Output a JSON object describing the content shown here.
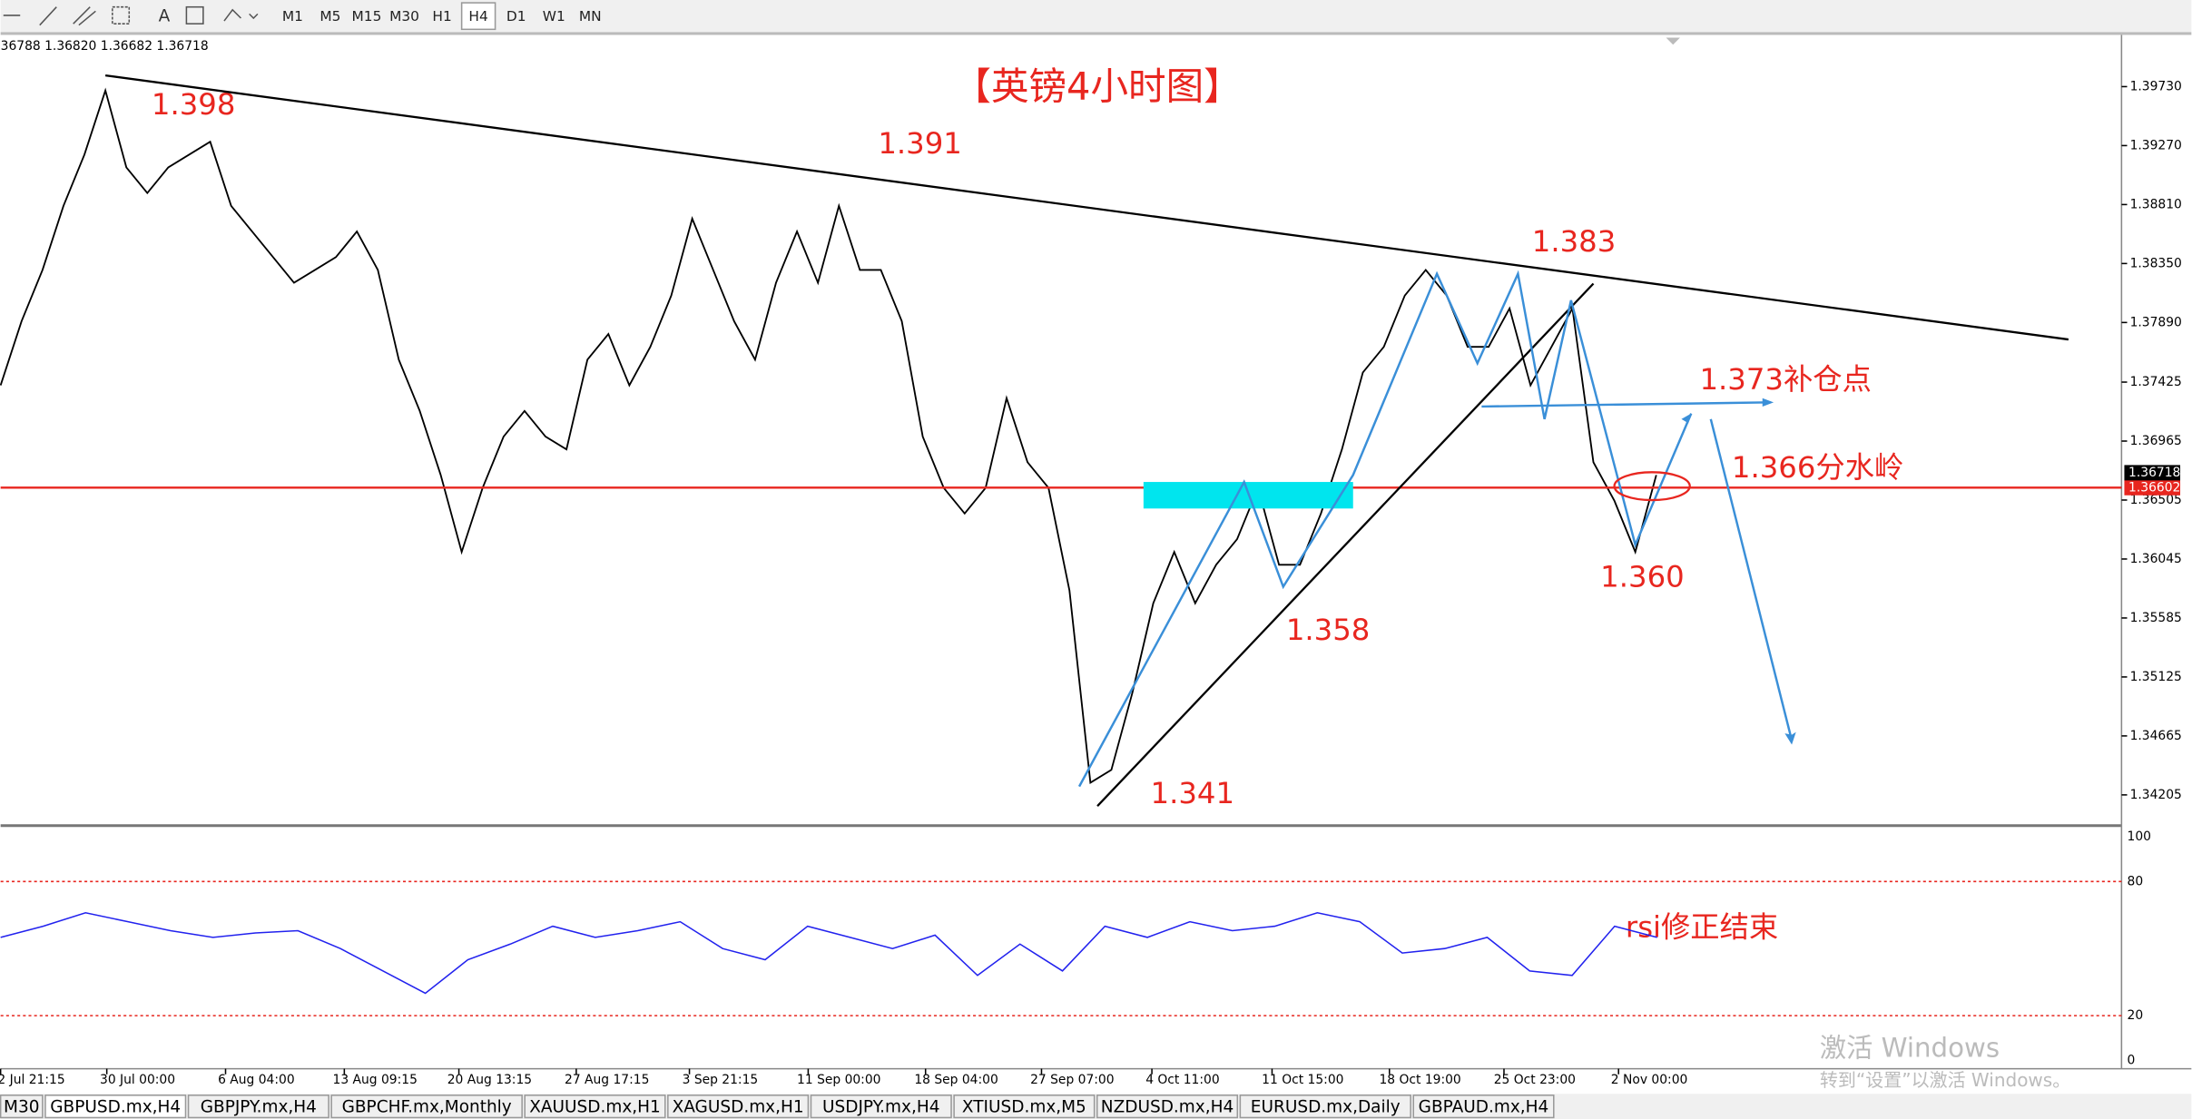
{
  "toolbar": {
    "timeframes": [
      "M1",
      "M5",
      "M15",
      "M30",
      "H1",
      "H4",
      "D1",
      "W1",
      "MN"
    ]
  },
  "chart": {
    "info": "36788 1.36820 1.36682 1.36718",
    "title": "【英镑4小时图】",
    "annotations": [
      "1.398",
      "1.391",
      "1.383",
      "1.373补仓点",
      "1.366分水岭",
      "1.360",
      "1.358",
      "1.341",
      "rsi修正结束"
    ],
    "price_ticks": [
      {
        "value": 1.3973,
        "label": "1.39730"
      },
      {
        "value": 1.3927,
        "label": "1.39270"
      },
      {
        "value": 1.3881,
        "label": "1.38810"
      },
      {
        "value": 1.3835,
        "label": "1.38350"
      },
      {
        "value": 1.3789,
        "label": "1.37890"
      },
      {
        "value": 1.37425,
        "label": "1.37425"
      },
      {
        "value": 1.36965,
        "label": "1.36965"
      },
      {
        "value": 1.36505,
        "label": "1.36505"
      },
      {
        "value": 1.36045,
        "label": "1.36045"
      },
      {
        "value": 1.35585,
        "label": "1.35585"
      },
      {
        "value": 1.35125,
        "label": "1.35125"
      },
      {
        "value": 1.34665,
        "label": "1.34665"
      },
      {
        "value": 1.34205,
        "label": "1.34205"
      }
    ],
    "bid": 1.36718,
    "level": {
      "value": 1.36602,
      "label": "1.36602"
    },
    "price_closes": [
      1.374,
      1.379,
      1.383,
      1.388,
      1.392,
      1.397,
      1.391,
      1.389,
      1.391,
      1.392,
      1.393,
      1.388,
      1.386,
      1.384,
      1.382,
      1.383,
      1.384,
      1.386,
      1.383,
      1.376,
      1.372,
      1.367,
      1.361,
      1.366,
      1.37,
      1.372,
      1.37,
      1.369,
      1.376,
      1.378,
      1.374,
      1.377,
      1.381,
      1.387,
      1.383,
      1.379,
      1.376,
      1.382,
      1.386,
      1.382,
      1.388,
      1.383,
      1.383,
      1.379,
      1.37,
      1.366,
      1.364,
      1.366,
      1.373,
      1.368,
      1.366,
      1.358,
      1.343,
      1.344,
      1.35,
      1.357,
      1.361,
      1.357,
      1.36,
      1.362,
      1.366,
      1.36,
      1.36,
      1.364,
      1.369,
      1.375,
      1.377,
      1.381,
      1.383,
      1.381,
      1.377,
      1.377,
      1.38,
      1.374,
      1.377,
      1.38,
      1.368,
      1.365,
      1.361,
      1.367
    ],
    "rsi_ticks": [
      100,
      80,
      20,
      0
    ],
    "rsi_values": [
      55,
      60,
      66,
      62,
      58,
      55,
      57,
      58,
      50,
      40,
      30,
      45,
      52,
      60,
      55,
      58,
      62,
      50,
      45,
      60,
      55,
      50,
      56,
      38,
      52,
      40,
      60,
      55,
      62,
      58,
      60,
      66,
      62,
      48,
      50,
      55,
      40,
      38,
      60,
      55
    ],
    "dates": [
      "2 Jul 21:15",
      "30 Jul 00:00",
      "6 Aug 04:00",
      "13 Aug 09:15",
      "20 Aug 13:15",
      "27 Aug 17:15",
      "3 Sep 21:15",
      "11 Sep 00:00",
      "18 Sep 04:00",
      "27 Sep 07:00",
      "4 Oct 11:00",
      "11 Oct 15:00",
      "18 Oct 19:00",
      "25 Oct 23:00",
      "2 Nov 00:00"
    ]
  },
  "watermark": {
    "line1": "激活 Windows",
    "line2": "转到“设置”以激活 Windows。"
  },
  "tabs": [
    "M30",
    "GBPUSD.mx,H4",
    "GBPJPY.mx,H4",
    "GBPCHF.mx,Monthly",
    "XAUUSD.mx,H1",
    "XAGUSD.mx,H1",
    "USDJPY.mx,H4",
    "XTIUSD.mx,M5",
    "NZDUSD.mx,H4",
    "EURUSD.mx,Daily",
    "GBPAUD.mx,H4"
  ]
}
